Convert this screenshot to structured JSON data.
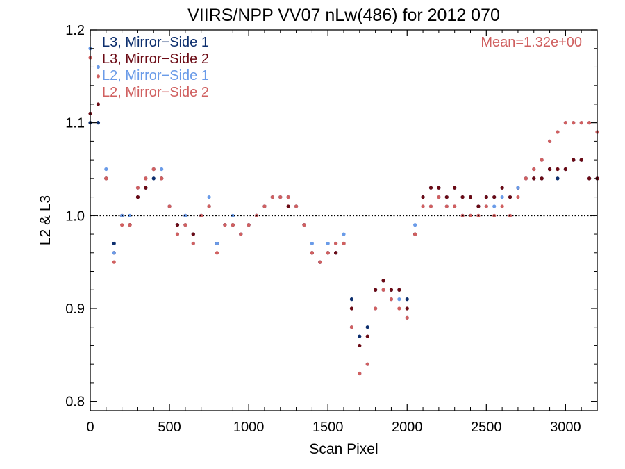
{
  "chart_data": {
    "type": "scatter",
    "title": "VIIRS/NPP VV07 nLw(486) for 2012 070",
    "xlabel": "Scan Pixel",
    "ylabel": "L2 & L3",
    "xlim": [
      0,
      3200
    ],
    "ylim": [
      0.79,
      1.2
    ],
    "x_ticks": [
      0,
      500,
      1000,
      1500,
      2000,
      2500,
      3000
    ],
    "y_ticks": [
      0.8,
      0.9,
      1.0,
      1.1,
      1.2
    ],
    "x_tick_labels": [
      "0",
      "500",
      "1000",
      "1500",
      "2000",
      "2500",
      "3000"
    ],
    "y_tick_labels": [
      "0.8",
      "0.9",
      "1.0",
      "1.1",
      "1.2"
    ],
    "reference_line": 1.0,
    "annotation": "Mean=1.32e+00",
    "annotation_color": "#d06060",
    "legend_position": "top-left",
    "series": [
      {
        "name": "L3, Mirror−Side 1",
        "color": "#0d2f6e",
        "x": [
          0,
          50,
          100,
          150,
          200,
          250,
          300,
          350,
          400,
          450,
          500,
          550,
          600,
          650,
          700,
          750,
          800,
          850,
          900,
          950,
          1000,
          1050,
          1100,
          1150,
          1200,
          1250,
          1300,
          1350,
          1400,
          1450,
          1500,
          1550,
          1600,
          1650,
          1700,
          1750,
          1800,
          1850,
          1900,
          1950,
          2000,
          2050,
          2100,
          2150,
          2200,
          2250,
          2300,
          2350,
          2400,
          2450,
          2500,
          2550,
          2600,
          2650,
          2700,
          2750,
          2800,
          2850,
          2900,
          2950,
          3000,
          3050,
          3100,
          3150,
          3200
        ],
        "y": [
          1.1,
          1.1,
          1.04,
          0.97,
          1.0,
          0.99,
          1.02,
          1.03,
          1.04,
          1.04,
          1.01,
          0.99,
          0.99,
          0.98,
          1.0,
          1.01,
          0.97,
          0.99,
          0.99,
          0.98,
          0.99,
          1.0,
          1.01,
          1.02,
          1.02,
          1.02,
          1.01,
          0.99,
          0.96,
          0.95,
          0.96,
          0.96,
          0.97,
          0.91,
          0.87,
          0.88,
          0.92,
          0.93,
          0.92,
          0.92,
          0.91,
          0.98,
          1.02,
          1.03,
          1.03,
          1.02,
          1.03,
          1.02,
          1.02,
          1.01,
          1.02,
          1.02,
          1.03,
          1.02,
          1.03,
          1.04,
          1.04,
          1.04,
          1.05,
          1.04,
          1.05,
          1.06,
          1.06,
          1.04,
          1.04
        ]
      },
      {
        "name": "L3, Mirror−Side 2",
        "color": "#6b0a14",
        "x": [
          0,
          50,
          100,
          150,
          200,
          250,
          300,
          350,
          400,
          450,
          500,
          550,
          600,
          650,
          700,
          750,
          800,
          850,
          900,
          950,
          1000,
          1050,
          1100,
          1150,
          1200,
          1250,
          1300,
          1350,
          1400,
          1450,
          1500,
          1550,
          1600,
          1650,
          1700,
          1750,
          1800,
          1850,
          1900,
          1950,
          2000,
          2050,
          2100,
          2150,
          2200,
          2250,
          2300,
          2350,
          2400,
          2450,
          2500,
          2550,
          2600,
          2650,
          2700,
          2750,
          2800,
          2850,
          2900,
          2950,
          3000,
          3050,
          3100,
          3150,
          3200
        ],
        "y": [
          1.11,
          1.12,
          1.04,
          0.96,
          1.0,
          0.99,
          1.02,
          1.03,
          1.05,
          1.04,
          1.01,
          0.99,
          1.0,
          0.98,
          1.0,
          1.01,
          0.97,
          0.99,
          0.99,
          0.98,
          0.99,
          1.0,
          1.01,
          1.02,
          1.02,
          1.01,
          1.01,
          0.99,
          0.96,
          0.95,
          0.96,
          0.96,
          0.97,
          0.9,
          0.86,
          0.87,
          0.92,
          0.93,
          0.92,
          0.92,
          0.9,
          0.98,
          1.02,
          1.03,
          1.03,
          1.02,
          1.03,
          1.02,
          1.02,
          1.01,
          1.02,
          1.02,
          1.03,
          1.02,
          1.03,
          1.04,
          1.04,
          1.04,
          1.05,
          1.05,
          1.05,
          1.06,
          1.06,
          1.04,
          1.04
        ]
      },
      {
        "name": "L2, Mirror−Side 1",
        "color": "#6a9be8",
        "x": [
          0,
          50,
          100,
          150,
          200,
          250,
          300,
          350,
          400,
          450,
          500,
          550,
          600,
          650,
          700,
          750,
          800,
          850,
          900,
          950,
          1000,
          1050,
          1100,
          1150,
          1200,
          1250,
          1300,
          1350,
          1400,
          1450,
          1500,
          1550,
          1600,
          1650,
          1700,
          1750,
          1800,
          1850,
          1900,
          1950,
          2000,
          2050,
          2100,
          2150,
          2200,
          2250,
          2300,
          2350,
          2400,
          2450,
          2500,
          2550,
          2600,
          2650,
          2700,
          2750,
          2800,
          2850,
          2900,
          2950,
          3000,
          3050,
          3100,
          3150,
          3200
        ],
        "y": [
          1.18,
          1.16,
          1.05,
          0.96,
          1.0,
          1.0,
          1.03,
          1.04,
          1.05,
          1.05,
          1.01,
          0.98,
          1.0,
          0.97,
          1.0,
          1.02,
          0.97,
          0.99,
          1.0,
          0.98,
          0.99,
          1.0,
          1.01,
          1.02,
          1.02,
          1.02,
          1.01,
          0.99,
          0.97,
          0.95,
          0.97,
          0.97,
          0.98,
          0.88,
          0.83,
          0.84,
          0.9,
          0.92,
          0.91,
          0.91,
          0.89,
          0.99,
          1.01,
          1.01,
          1.02,
          1.01,
          1.01,
          1.0,
          1.0,
          1.0,
          1.01,
          1.01,
          1.02,
          1.0,
          1.03,
          1.04,
          1.05,
          1.06,
          1.08,
          1.09,
          1.1,
          1.1,
          1.1,
          1.1,
          1.09
        ]
      },
      {
        "name": "L2, Mirror−Side 2",
        "color": "#d06060",
        "x": [
          0,
          50,
          100,
          150,
          200,
          250,
          300,
          350,
          400,
          450,
          500,
          550,
          600,
          650,
          700,
          750,
          800,
          850,
          900,
          950,
          1000,
          1050,
          1100,
          1150,
          1200,
          1250,
          1300,
          1350,
          1400,
          1450,
          1500,
          1550,
          1600,
          1650,
          1700,
          1750,
          1800,
          1850,
          1900,
          1950,
          2000,
          2050,
          2100,
          2150,
          2200,
          2250,
          2300,
          2350,
          2400,
          2450,
          2500,
          2550,
          2600,
          2650,
          2700,
          2750,
          2800,
          2850,
          2900,
          2950,
          3000,
          3050,
          3100,
          3150,
          3200
        ],
        "y": [
          1.17,
          1.15,
          1.04,
          0.95,
          0.99,
          0.99,
          1.03,
          1.04,
          1.05,
          1.04,
          1.01,
          0.98,
          0.99,
          0.97,
          1.0,
          1.01,
          0.96,
          0.99,
          0.99,
          0.98,
          0.99,
          1.0,
          1.01,
          1.02,
          1.02,
          1.02,
          1.01,
          0.99,
          0.96,
          0.95,
          0.96,
          0.97,
          0.97,
          0.88,
          0.83,
          0.84,
          0.9,
          0.92,
          0.91,
          0.9,
          0.89,
          0.98,
          1.01,
          1.01,
          1.02,
          1.01,
          1.01,
          1.0,
          1.0,
          1.0,
          1.01,
          1.0,
          1.01,
          1.0,
          1.02,
          1.04,
          1.05,
          1.06,
          1.08,
          1.09,
          1.1,
          1.1,
          1.1,
          1.1,
          1.09
        ]
      }
    ]
  }
}
